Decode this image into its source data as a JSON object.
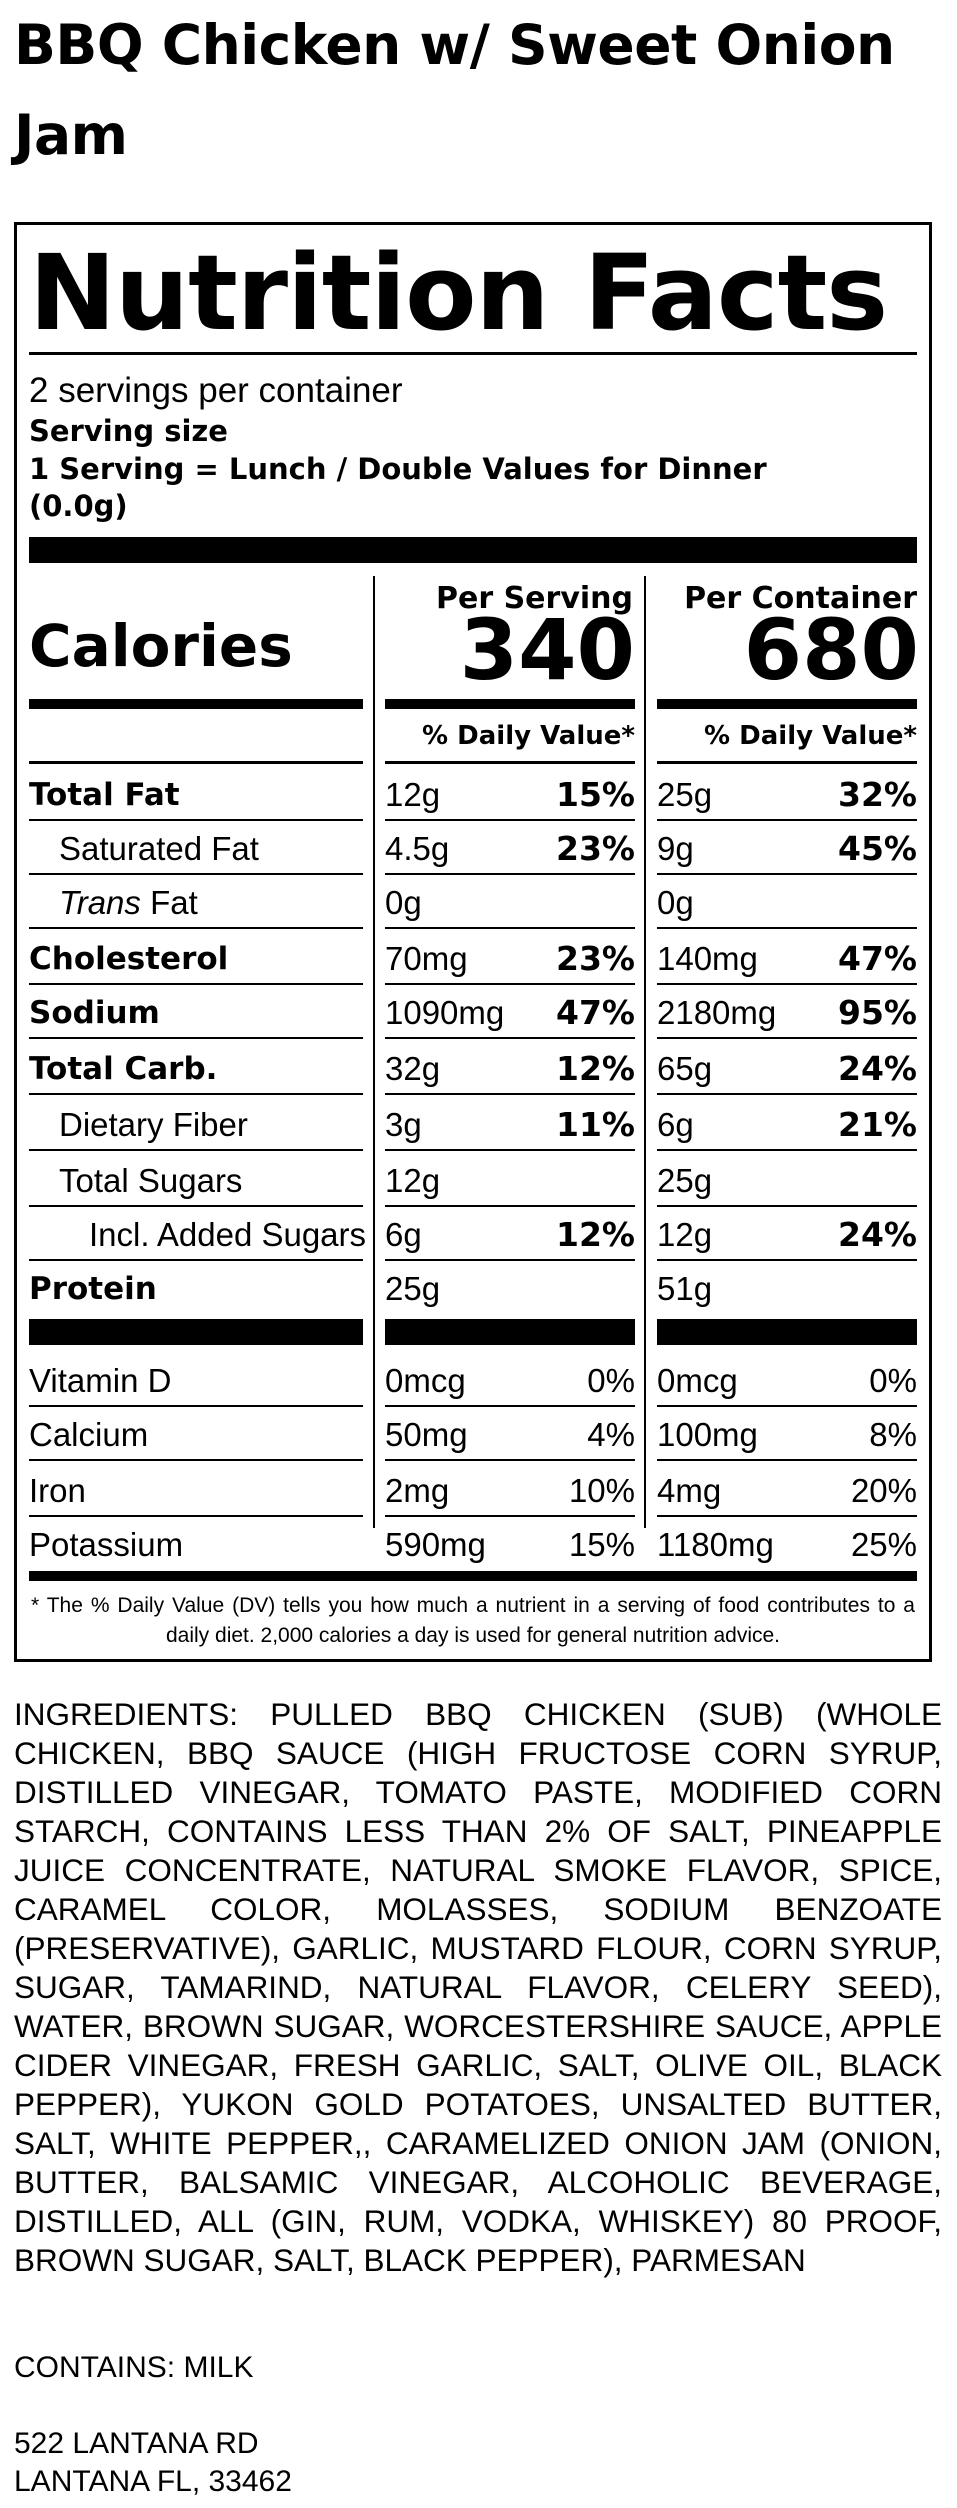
{
  "product_title": "BBQ Chicken w/ Sweet Onion Jam",
  "label": {
    "heading": "Nutrition Facts",
    "servings_per_container": "2 servings per container",
    "serving_size_label": "Serving size",
    "serving_size_value": "1 Serving = Lunch / Double Values for Dinner",
    "serving_size_weight": "(0.0g)",
    "col1_header": "Per Serving",
    "col2_header": "Per Container",
    "calories_label": "Calories",
    "calories_serving": "340",
    "calories_container": "680",
    "dv_header": "% Daily Value*",
    "nutrients": [
      {
        "name": "Total Fat",
        "s_amt": "12g",
        "s_dv": "15%",
        "c_amt": "25g",
        "c_dv": "32%"
      },
      {
        "name": "Saturated Fat",
        "s_amt": "4.5g",
        "s_dv": "23%",
        "c_amt": "9g",
        "c_dv": "45%"
      },
      {
        "name_italic": "Trans",
        "name_rest": " Fat",
        "s_amt": "0g",
        "s_dv": "",
        "c_amt": "0g",
        "c_dv": ""
      },
      {
        "name": "Cholesterol",
        "s_amt": "70mg",
        "s_dv": "23%",
        "c_amt": "140mg",
        "c_dv": "47%"
      },
      {
        "name": "Sodium",
        "s_amt": "1090mg",
        "s_dv": "47%",
        "c_amt": "2180mg",
        "c_dv": "95%"
      },
      {
        "name": "Total Carb.",
        "s_amt": "32g",
        "s_dv": "12%",
        "c_amt": "65g",
        "c_dv": "24%"
      },
      {
        "name": "Dietary Fiber",
        "s_amt": "3g",
        "s_dv": "11%",
        "c_amt": "6g",
        "c_dv": "21%"
      },
      {
        "name": "Total Sugars",
        "s_amt": "12g",
        "s_dv": "",
        "c_amt": "25g",
        "c_dv": ""
      },
      {
        "name": "Incl. Added Sugars",
        "s_amt": "6g",
        "s_dv": "12%",
        "c_amt": "12g",
        "c_dv": "24%"
      },
      {
        "name": "Protein",
        "s_amt": "25g",
        "s_dv": "",
        "c_amt": "51g",
        "c_dv": ""
      }
    ],
    "vitamins": [
      {
        "name": "Vitamin D",
        "s_amt": "0mcg",
        "s_dv": "0%",
        "c_amt": "0mcg",
        "c_dv": "0%"
      },
      {
        "name": "Calcium",
        "s_amt": "50mg",
        "s_dv": "4%",
        "c_amt": "100mg",
        "c_dv": "8%"
      },
      {
        "name": "Iron",
        "s_amt": "2mg",
        "s_dv": "10%",
        "c_amt": "4mg",
        "c_dv": "20%"
      },
      {
        "name": "Potassium",
        "s_amt": "590mg",
        "s_dv": "15%",
        "c_amt": "1180mg",
        "c_dv": "25%"
      }
    ],
    "footnote": "* The % Daily Value (DV) tells you how much a nutrient in a serving of food contributes to a daily diet. 2,000 calories a day is used for general nutrition advice."
  },
  "ingredients": "INGREDIENTS: PULLED BBQ CHICKEN (SUB) (WHOLE CHICKEN, BBQ SAUCE (HIGH FRUCTOSE CORN SYRUP, DISTILLED VINEGAR, TOMATO PASTE, MODIFIED CORN STARCH, CONTAINS LESS THAN 2% OF SALT, PINEAPPLE JUICE CONCENTRATE, NATURAL SMOKE FLAVOR, SPICE, CARAMEL COLOR, MOLASSES, SODIUM BENZOATE (PRESERVATIVE), GARLIC, MUSTARD FLOUR, CORN SYRUP, SUGAR, TAMARIND, NATURAL FLAVOR, CELERY SEED), WATER, BROWN SUGAR, WORCESTERSHIRE SAUCE, APPLE CIDER VINEGAR, FRESH GARLIC, SALT, OLIVE OIL, BLACK PEPPER), YUKON GOLD POTATOES, UNSALTED BUTTER, SALT, WHITE PEPPER,, CARAMELIZED ONION JAM (ONION, BUTTER, BALSAMIC VINEGAR, ALCOHOLIC BEVERAGE, DISTILLED, ALL (GIN, RUM, VODKA, WHISKEY) 80 PROOF, BROWN SUGAR, SALT, BLACK PEPPER), PARMESAN",
  "contains": "CONTAINS: MILK",
  "address_line1": "522 LANTANA RD",
  "address_line2": "LANTANA FL, 33462"
}
